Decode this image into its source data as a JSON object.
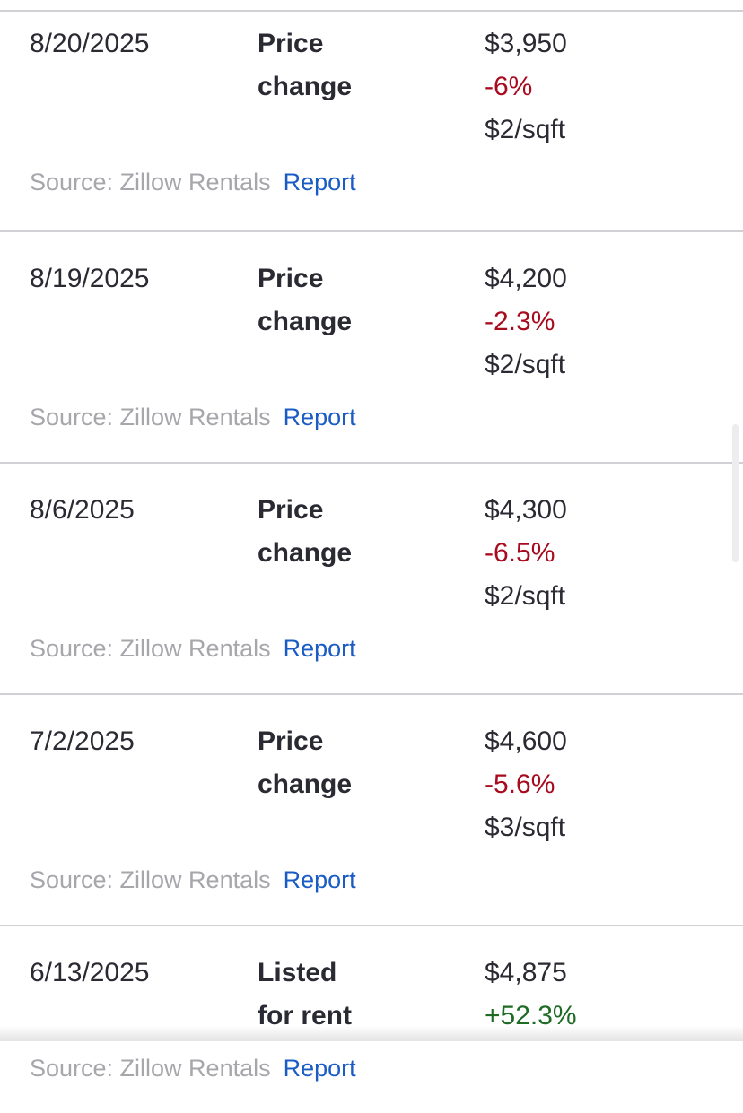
{
  "page": {
    "source_label": "Source: Zillow Rentals",
    "report_label": "Report"
  },
  "colors": {
    "text_primary": "#2A2A33",
    "text_muted": "#A7A6AB",
    "link_blue": "#1A5CC4",
    "divider": "#D1D1D5",
    "negative_red": "#A80A1E",
    "positive_green": "#1E6B24"
  },
  "price_history": {
    "rows": [
      {
        "date": "8/20/2025",
        "event_line1": "Price",
        "event_line2": "change",
        "price": "$3,950",
        "change": "-6%",
        "direction": "down",
        "per_sqft": "$2/sqft"
      },
      {
        "date": "8/19/2025",
        "event_line1": "Price",
        "event_line2": "change",
        "price": "$4,200",
        "change": "-2.3%",
        "direction": "down",
        "per_sqft": "$2/sqft"
      },
      {
        "date": "8/6/2025",
        "event_line1": "Price",
        "event_line2": "change",
        "price": "$4,300",
        "change": "-6.5%",
        "direction": "down",
        "per_sqft": "$2/sqft"
      },
      {
        "date": "7/2/2025",
        "event_line1": "Price",
        "event_line2": "change",
        "price": "$4,600",
        "change": "-5.6%",
        "direction": "down",
        "per_sqft": "$3/sqft"
      },
      {
        "date": "6/13/2025",
        "event_line1": "Listed",
        "event_line2": "for rent",
        "price": "$4,875",
        "change": "+52.3%",
        "direction": "up",
        "per_sqft": ""
      }
    ]
  }
}
